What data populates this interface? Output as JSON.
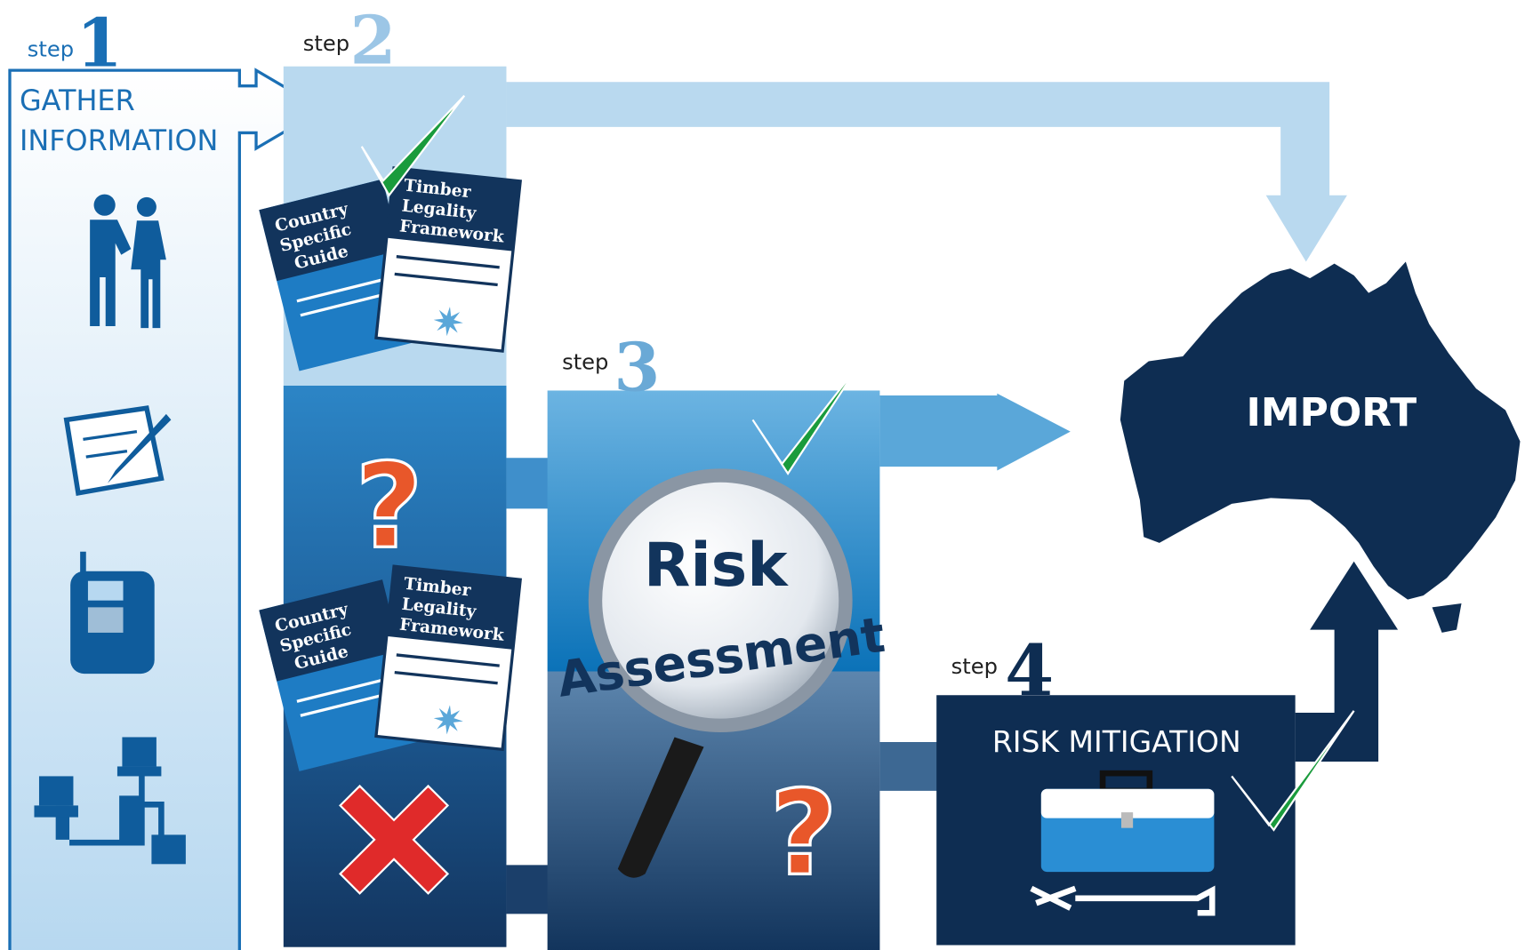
{
  "steps": [
    {
      "label": "step",
      "number": "1",
      "title": [
        "GATHER",
        "INFORMATION"
      ]
    },
    {
      "label": "step",
      "number": "2"
    },
    {
      "label": "step",
      "number": "3",
      "title": [
        "Risk",
        "Assessment"
      ]
    },
    {
      "label": "step",
      "number": "4",
      "title": "RISK MITIGATION"
    }
  ],
  "documents": [
    {
      "title": [
        "Country",
        "Specific",
        "Guide"
      ]
    },
    {
      "title": [
        "Timber",
        "Legality",
        "Framework"
      ]
    },
    {
      "title": [
        "Country",
        "Specific",
        "Guide"
      ]
    },
    {
      "title": [
        "Timber",
        "Legality",
        "Framework"
      ]
    }
  ],
  "questions": [
    "?",
    "?"
  ],
  "destination": "IMPORT"
}
